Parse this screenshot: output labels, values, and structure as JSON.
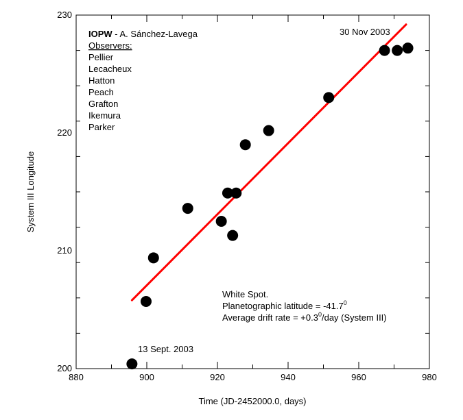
{
  "chart_data": {
    "type": "scatter",
    "xlabel": "Time (JD-2452000.0, days)",
    "ylabel": "System III Longitude",
    "xlim": [
      880,
      980
    ],
    "ylim": [
      200,
      230
    ],
    "x_ticks": [
      880,
      900,
      920,
      940,
      960,
      980
    ],
    "y_ticks": [
      200,
      210,
      220,
      230
    ],
    "grid": false,
    "points": [
      {
        "x": 895.8,
        "y": 200.4
      },
      {
        "x": 899.8,
        "y": 205.7
      },
      {
        "x": 901.9,
        "y": 209.4
      },
      {
        "x": 911.6,
        "y": 213.6
      },
      {
        "x": 921.1,
        "y": 212.5
      },
      {
        "x": 922.9,
        "y": 214.9
      },
      {
        "x": 924.3,
        "y": 211.3
      },
      {
        "x": 925.3,
        "y": 214.9
      },
      {
        "x": 927.9,
        "y": 219.0
      },
      {
        "x": 934.5,
        "y": 220.2
      },
      {
        "x": 951.5,
        "y": 223.0
      },
      {
        "x": 967.3,
        "y": 227.0
      },
      {
        "x": 970.9,
        "y": 227.0
      },
      {
        "x": 973.9,
        "y": 227.2
      }
    ],
    "fit_line": {
      "x": [
        895.8,
        973.4
      ],
      "y": [
        205.8,
        229.2
      ],
      "color": "#ff0000"
    },
    "point_color": "#000000",
    "annotations": {
      "start_date": "13 Sept. 2003",
      "end_date": "30 Nov 2003"
    },
    "credit": {
      "org": "IOPW",
      "author": " - A. Sánchez-Lavega",
      "observers_heading": "Observers:",
      "observers": [
        "Pellier",
        "Lecacheux",
        "Hatton",
        "Peach",
        "Grafton",
        "Ikemura",
        "Parker"
      ]
    },
    "info": {
      "line1": "White Spot.",
      "line2_prefix": "Planetographic latitude = -41.7",
      "line2_sup": "0",
      "line3_prefix": "Average drift rate = +0.3",
      "line3_sup": "0",
      "line3_suffix": "/day (System III)"
    }
  }
}
